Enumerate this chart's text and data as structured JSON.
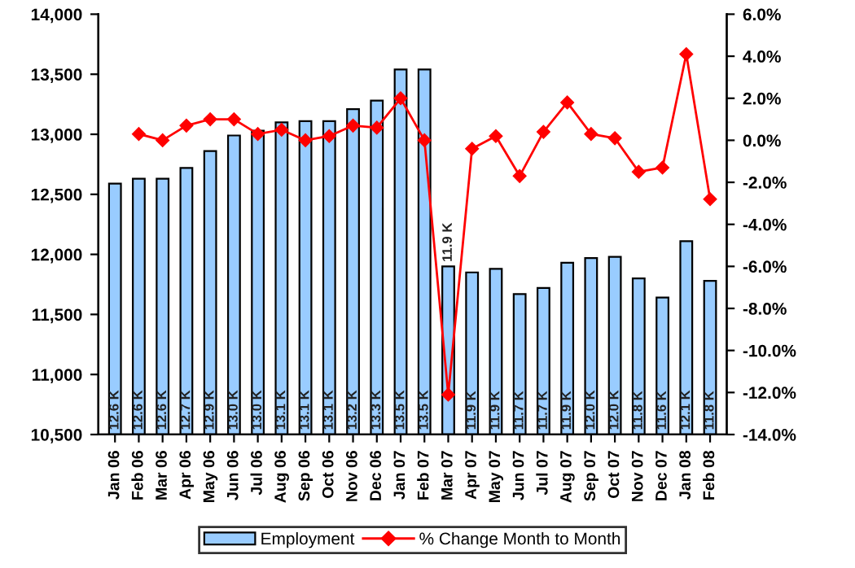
{
  "chart_data": {
    "type": "bar",
    "categories": [
      "Jan 06",
      "Feb 06",
      "Mar 06",
      "Apr 06",
      "May 06",
      "Jun 06",
      "Jul 06",
      "Aug 06",
      "Sep 06",
      "Oct 06",
      "Nov 06",
      "Dec 06",
      "Jan 07",
      "Feb 07",
      "Mar 07",
      "Apr 07",
      "May 07",
      "Jun 07",
      "Jul 07",
      "Aug 07",
      "Sep 07",
      "Oct 07",
      "Nov 07",
      "Dec 07",
      "Jan 08",
      "Feb 08"
    ],
    "series": [
      {
        "name": "Employment",
        "color": "#99ccff",
        "values": [
          12590,
          12630,
          12630,
          12720,
          12860,
          12990,
          13030,
          13100,
          13110,
          13110,
          13210,
          13280,
          13540,
          13540,
          11900,
          11850,
          11880,
          11670,
          11720,
          11930,
          11970,
          11980,
          11800,
          11640,
          12110,
          11780
        ],
        "value_labels": [
          "12.6 K",
          "12.6 K",
          "12.6 K",
          "12.7 K",
          "12.9 K",
          "13.0 K",
          "13.0 K",
          "13.1 K",
          "13.1 K",
          "13.1 K",
          "13.2 K",
          "13.3 K",
          "13.5 K",
          "13.5 K",
          "11.9 K",
          "11.9 K",
          "11.9 K",
          "11.7 K",
          "11.7 K",
          "11.9 K",
          "12.0 K",
          "12.0 K",
          "11.8 K",
          "11.6 K",
          "12.1 K",
          "11.8 K"
        ]
      },
      {
        "name": "% Change Month to Month",
        "type": "line",
        "axis": "y2",
        "color": "#ff0000",
        "marker": "diamond",
        "values": [
          null,
          0.3,
          0.0,
          0.7,
          1.0,
          1.0,
          0.3,
          0.5,
          0.0,
          0.2,
          0.7,
          0.6,
          2.0,
          0.0,
          -12.1,
          -0.4,
          0.2,
          -1.7,
          0.4,
          1.8,
          0.3,
          0.1,
          -1.5,
          -1.3,
          4.1,
          -2.8
        ]
      }
    ],
    "ylim": [
      10500,
      14000
    ],
    "yticks": [
      {
        "value": 10500,
        "label": "10,500"
      },
      {
        "value": 11000,
        "label": "11,000"
      },
      {
        "value": 11500,
        "label": "11,500"
      },
      {
        "value": 12000,
        "label": "12,000"
      },
      {
        "value": 12500,
        "label": "12,500"
      },
      {
        "value": 13000,
        "label": "13,000"
      },
      {
        "value": 13500,
        "label": "13,500"
      },
      {
        "value": 14000,
        "label": "14,000"
      }
    ],
    "y2lim": [
      -14,
      6
    ],
    "y2ticks": [
      {
        "value": -14,
        "label": "-14.0%"
      },
      {
        "value": -12,
        "label": "-12.0%"
      },
      {
        "value": -10,
        "label": "-10.0%"
      },
      {
        "value": -8,
        "label": "-8.0%"
      },
      {
        "value": -6,
        "label": "-6.0%"
      },
      {
        "value": -4,
        "label": "-4.0%"
      },
      {
        "value": -2,
        "label": "-2.0%"
      },
      {
        "value": 0,
        "label": "0.0%"
      },
      {
        "value": 2,
        "label": "2.0%"
      },
      {
        "value": 4,
        "label": "4.0%"
      },
      {
        "value": 6,
        "label": "6.0%"
      }
    ],
    "legend": "bottom",
    "grid": false
  }
}
